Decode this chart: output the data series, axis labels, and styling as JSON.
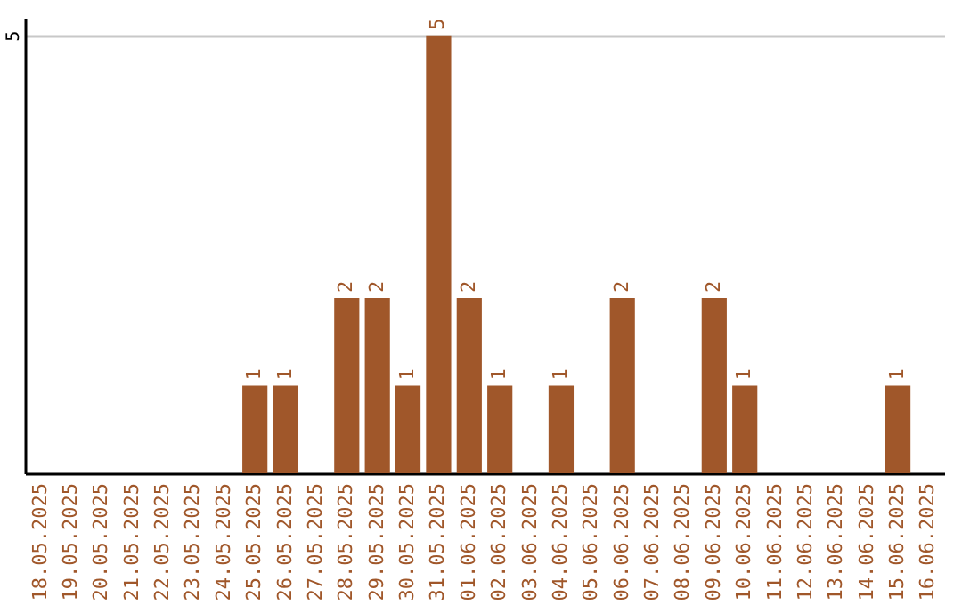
{
  "chart_data": {
    "type": "bar",
    "categories": [
      "18.05.2025",
      "19.05.2025",
      "20.05.2025",
      "21.05.2025",
      "22.05.2025",
      "23.05.2025",
      "24.05.2025",
      "25.05.2025",
      "26.05.2025",
      "27.05.2025",
      "28.05.2025",
      "29.05.2025",
      "30.05.2025",
      "31.05.2025",
      "01.06.2025",
      "02.06.2025",
      "03.06.2025",
      "04.06.2025",
      "05.06.2025",
      "06.06.2025",
      "07.06.2025",
      "08.06.2025",
      "09.06.2025",
      "10.06.2025",
      "11.06.2025",
      "12.06.2025",
      "13.06.2025",
      "14.06.2025",
      "15.06.2025",
      "16.06.2025"
    ],
    "values": [
      0,
      0,
      0,
      0,
      0,
      0,
      0,
      1,
      1,
      0,
      2,
      2,
      1,
      5,
      2,
      1,
      0,
      1,
      0,
      2,
      0,
      0,
      2,
      1,
      0,
      0,
      0,
      0,
      1,
      0
    ],
    "value_labels": [
      null,
      null,
      null,
      null,
      null,
      null,
      null,
      "1",
      "1",
      null,
      "2",
      "2",
      "1",
      "5",
      "2",
      "1",
      null,
      "1",
      null,
      "2",
      null,
      null,
      "2",
      "1",
      null,
      null,
      null,
      null,
      "1",
      null
    ],
    "color": "#a0572a",
    "ylim": [
      0,
      5.2
    ],
    "yticks": [
      5
    ],
    "grid": "y"
  }
}
